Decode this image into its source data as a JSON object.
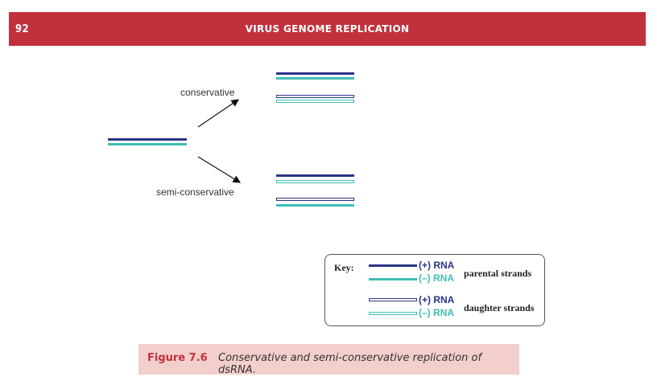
{
  "header": {
    "page_number": "92",
    "running_title": "VIRUS GENOME REPLICATION"
  },
  "diagram": {
    "labels": {
      "conservative": "conservative",
      "semi_conservative": "semi-conservative"
    }
  },
  "key": {
    "title": "Key:",
    "plus_rna": "(+) RNA",
    "minus_rna": "(–) RNA",
    "parental": "parental strands",
    "daughter": "daughter strands"
  },
  "caption": {
    "figure_number": "Figure 7.6",
    "text": "Conservative and semi-conservative replication of dsRNA."
  },
  "colors": {
    "header_red": "#c1313c",
    "plus_strand": "#2c3486",
    "minus_strand": "#3fbdb5",
    "caption_bg": "#f2cfcc"
  }
}
